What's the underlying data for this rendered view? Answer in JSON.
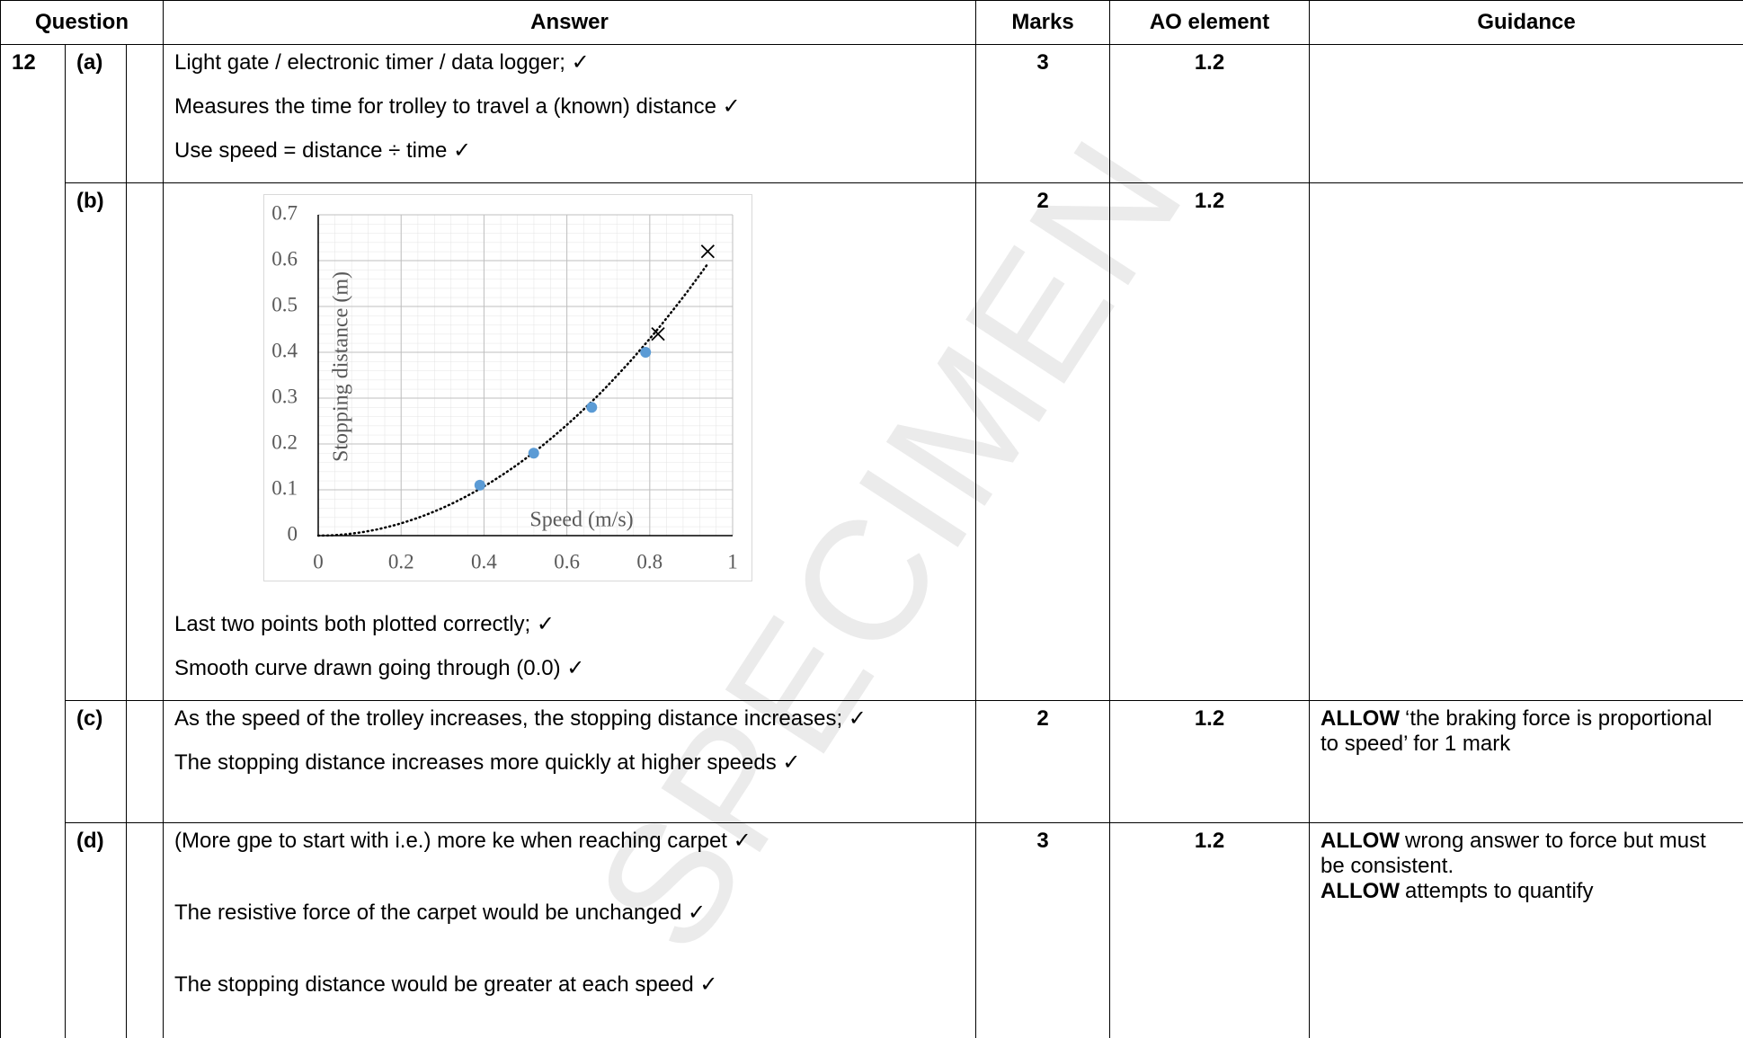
{
  "header": {
    "question": "Question",
    "answer": "Answer",
    "marks": "Marks",
    "ao": "AO element",
    "guidance": "Guidance"
  },
  "question_number": "12",
  "watermark": "SPECIMEN",
  "parts": [
    {
      "label": "(a)",
      "answer": [
        "Light gate / electronic timer / data logger; ✓",
        "Measures the time for trolley to travel a (known) distance ✓",
        "Use speed = distance ÷ time ✓"
      ],
      "marks": "3",
      "ao": "1.2"
    },
    {
      "label": "(b)",
      "answer": [
        "Last two points both plotted correctly; ✓",
        "Smooth curve drawn going through (0.0) ✓"
      ],
      "marks": "2",
      "ao": "1.2"
    },
    {
      "label": "(c)",
      "answer": [
        "As the speed of the trolley increases, the stopping distance increases; ✓",
        "The stopping distance increases more quickly at higher speeds ✓"
      ],
      "marks": "2",
      "ao": "1.2",
      "guidance": [
        {
          "bold": "ALLOW",
          "text": "‘the braking force is proportional to speed’ for 1 mark"
        }
      ]
    },
    {
      "label": "(d)",
      "answer": [
        "(More gpe to start with i.e.) more ke when reaching carpet ✓",
        "The resistive force of the carpet would be unchanged ✓",
        "The stopping distance would be greater at each speed ✓"
      ],
      "marks": "3",
      "ao": "1.2",
      "guidance": [
        {
          "bold": "ALLOW",
          "text": "wrong answer to force but must be consistent."
        },
        {
          "bold": "ALLOW",
          "text": "attempts to quantify"
        }
      ]
    }
  ],
  "chart_data": {
    "type": "scatter",
    "xlabel": "Speed (m/s)",
    "ylabel": "Stopping distance (m)",
    "series": [
      {
        "marker": "circle",
        "color": "#5b9bd5",
        "x": [
          0.39,
          0.52,
          0.66,
          0.79
        ],
        "values": [
          0.11,
          0.18,
          0.28,
          0.4
        ]
      },
      {
        "marker": "cross",
        "color": "#000000",
        "x": [
          0.82,
          0.94
        ],
        "values": [
          0.44,
          0.62
        ]
      }
    ],
    "trendline": "dotted",
    "xlim": [
      0,
      1
    ],
    "xticks": [
      0,
      0.2,
      0.4,
      0.6,
      0.8,
      1
    ],
    "ylim": [
      0,
      0.7
    ],
    "yticks": [
      0,
      0.1,
      0.2,
      0.3,
      0.4,
      0.5,
      0.6,
      0.7
    ],
    "grid": true
  }
}
